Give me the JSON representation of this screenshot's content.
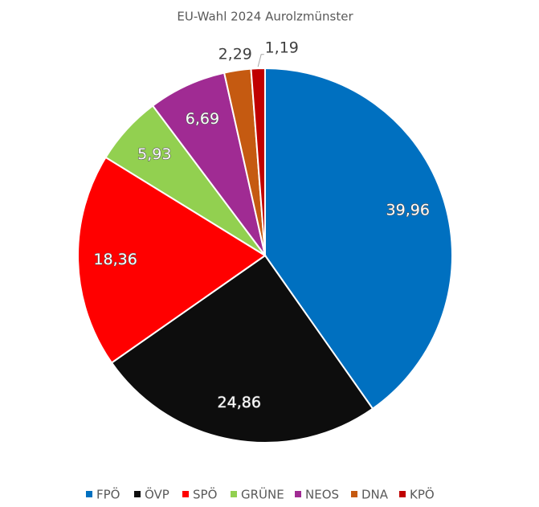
{
  "chart_data": {
    "type": "pie",
    "title": "EU-Wahl 2024 Aurolzmünster",
    "categories": [
      "FPÖ",
      "ÖVP",
      "SPÖ",
      "GRÜNE",
      "NEOS",
      "DNA",
      "KPÖ"
    ],
    "values": [
      39.96,
      24.86,
      18.36,
      5.93,
      6.69,
      2.29,
      1.19
    ],
    "value_labels": [
      "39,96",
      "24,86",
      "18,36",
      "5,93",
      "6,69",
      "2,29",
      "1,19"
    ],
    "colors": [
      "#0070c0",
      "#0d0d0d",
      "#ff0000",
      "#92d050",
      "#a02b93",
      "#c55a11",
      "#c00000"
    ],
    "legend": "bottom"
  }
}
